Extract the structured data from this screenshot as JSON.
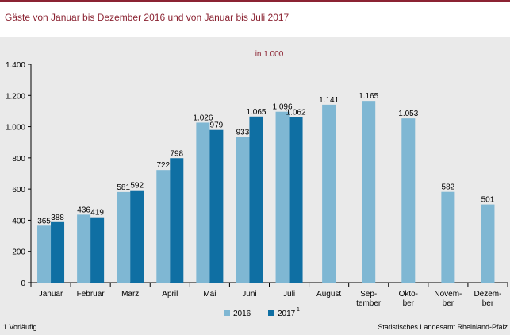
{
  "title": "Gäste von Januar bis Dezember 2016 und von Januar bis Juli 2017",
  "footnote": "1 Vorläufig.",
  "source": "Statistisches Landesamt Rheinland-Pfalz",
  "colors": {
    "series_2016": "#7fb7d3",
    "series_2017": "#0f6fa3",
    "accent": "#8b2332",
    "background": "#eaeaea"
  },
  "chart_data": {
    "type": "bar",
    "unit_label": "in 1.000",
    "categories": [
      [
        "Januar"
      ],
      [
        "Februar"
      ],
      [
        "März"
      ],
      [
        "April"
      ],
      [
        "Mai"
      ],
      [
        "Juni"
      ],
      [
        "Juli"
      ],
      [
        "August"
      ],
      [
        "Sep-",
        "tember"
      ],
      [
        "Okto-",
        "ber"
      ],
      [
        "Novem-",
        "ber"
      ],
      [
        "Dezem-",
        "ber"
      ]
    ],
    "series": [
      {
        "name": "2016",
        "color": "#7fb7d3",
        "values": [
          365,
          436,
          581,
          722,
          1026,
          933,
          1096,
          1141,
          1165,
          1053,
          582,
          501
        ],
        "labels": [
          "365",
          "436",
          "581",
          "722",
          "1.026",
          "933",
          "1.096",
          "1.141",
          "1.165",
          "1.053",
          "582",
          "501"
        ]
      },
      {
        "name": "2017",
        "superscript": "1",
        "color": "#0f6fa3",
        "values": [
          388,
          419,
          592,
          798,
          979,
          1065,
          1062,
          null,
          null,
          null,
          null,
          null
        ],
        "labels": [
          "388",
          "419",
          "592",
          "798",
          "979",
          "1.065",
          "1.062",
          "",
          "",
          "",
          "",
          ""
        ]
      }
    ],
    "ylim": [
      0,
      1400
    ],
    "yticks": [
      0,
      200,
      400,
      600,
      800,
      1000,
      1200,
      1400
    ],
    "ytick_labels": [
      "0",
      "200",
      "400",
      "600",
      "800",
      "1.000",
      "1.200",
      "1.400"
    ],
    "legend_position": "bottom-center",
    "grid": false
  }
}
